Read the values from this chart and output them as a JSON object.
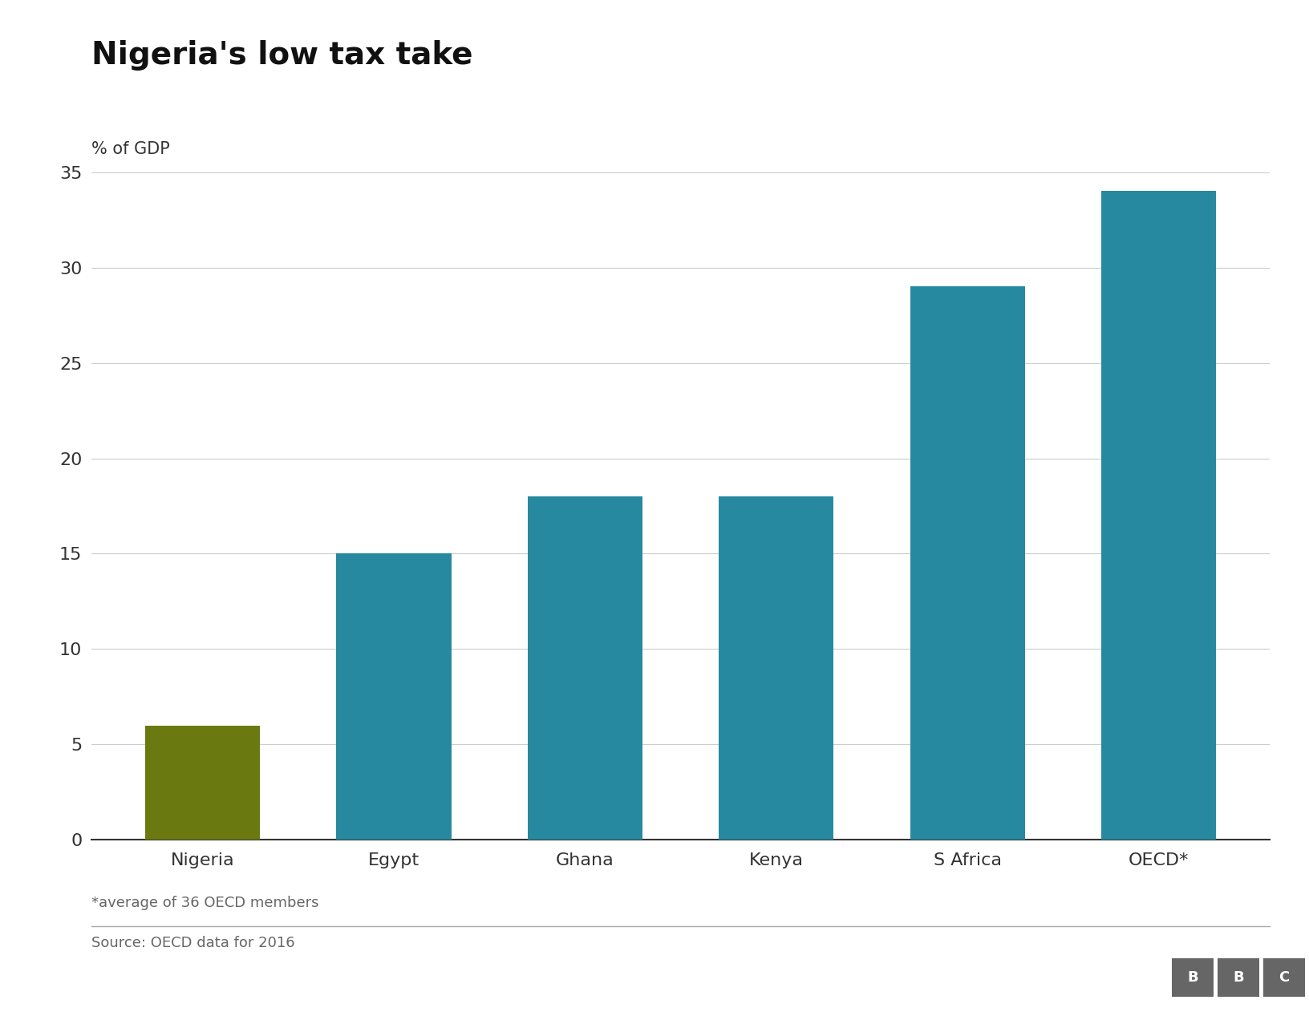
{
  "title": "Nigeria's low tax take",
  "ylabel": "% of GDP",
  "categories": [
    "Nigeria",
    "Egypt",
    "Ghana",
    "Kenya",
    "S Africa",
    "OECD*"
  ],
  "values": [
    6.0,
    15.0,
    18.0,
    18.0,
    29.0,
    34.0
  ],
  "bar_colors": [
    "#6b7a10",
    "#2789a0",
    "#2789a0",
    "#2789a0",
    "#2789a0",
    "#2789a0"
  ],
  "ylim": [
    0,
    35
  ],
  "yticks": [
    0,
    5,
    10,
    15,
    20,
    25,
    30,
    35
  ],
  "footnote": "*average of 36 OECD members",
  "source": "Source: OECD data for 2016",
  "background_color": "#ffffff",
  "grid_color": "#cccccc",
  "title_fontsize": 28,
  "label_fontsize": 15,
  "tick_fontsize": 16,
  "bar_width": 0.6,
  "bbc_color": "#666666"
}
